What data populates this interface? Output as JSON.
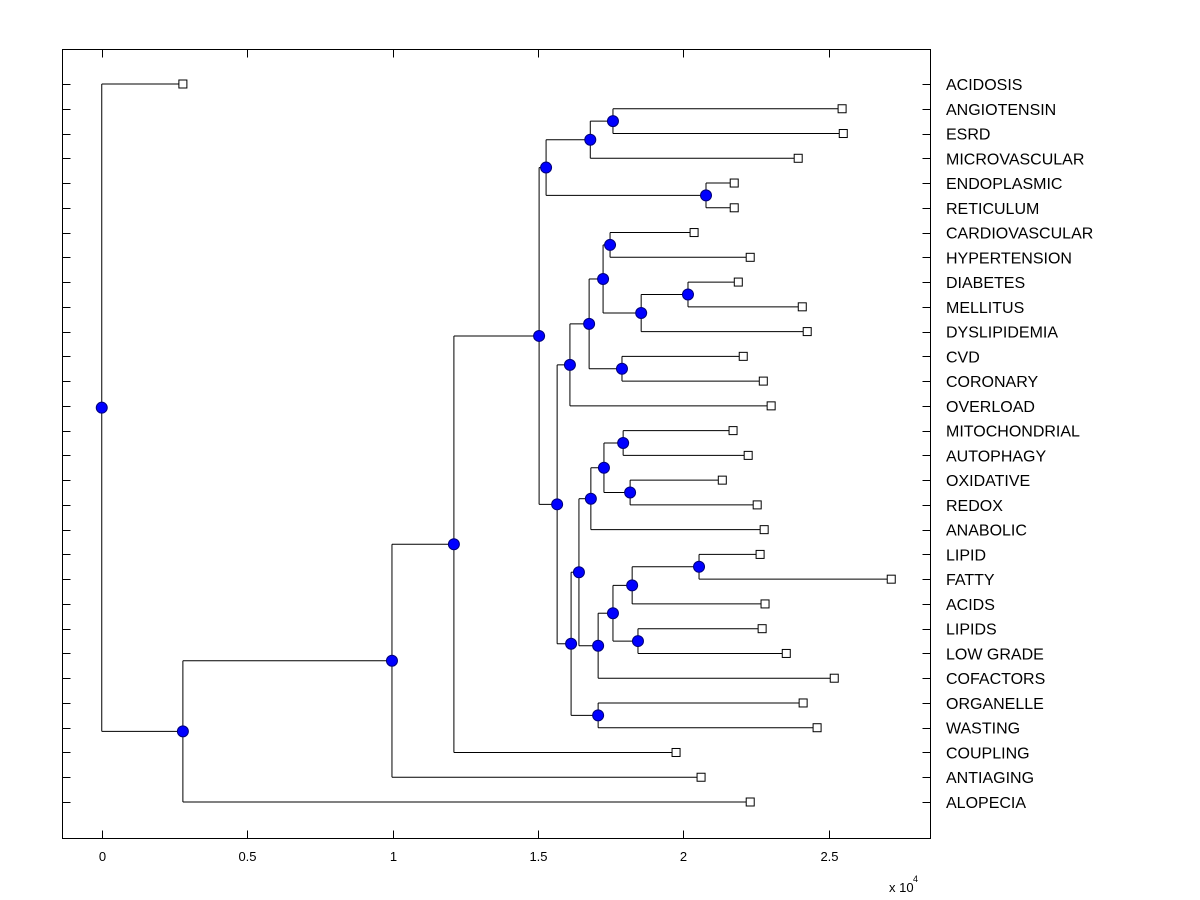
{
  "chart_data": {
    "type": "dendrogram",
    "title": "",
    "xlabel": "",
    "ylabel": "",
    "x_multiplier_label": "x 10",
    "x_multiplier_exponent": "4",
    "xlim": [
      -0.135,
      2.85
    ],
    "x_ticks": [
      0,
      0.5,
      1,
      1.5,
      2,
      2.5
    ],
    "x_tick_labels": [
      "0",
      "0.5",
      "1",
      "1.5",
      "2",
      "2.5"
    ],
    "grid": false,
    "leaf_marker_color": "#ffffff",
    "node_marker_color": "#0000ff",
    "leaves": [
      {
        "label": "ACIDOSIS",
        "x": 0.279
      },
      {
        "label": "ANGIOTENSIN",
        "x": 2.546
      },
      {
        "label": "ESRD",
        "x": 2.55
      },
      {
        "label": "MICROVASCULAR",
        "x": 2.395
      },
      {
        "label": "ENDOPLASMIC",
        "x": 2.175
      },
      {
        "label": "RETICULUM",
        "x": 2.175
      },
      {
        "label": "CARDIOVASCULAR",
        "x": 2.037
      },
      {
        "label": "HYPERTENSION",
        "x": 2.23
      },
      {
        "label": "DIABETES",
        "x": 2.189
      },
      {
        "label": "MELLITUS",
        "x": 2.409
      },
      {
        "label": "DYSLIPIDEMIA",
        "x": 2.426
      },
      {
        "label": "CVD",
        "x": 2.206
      },
      {
        "label": "CORONARY",
        "x": 2.275
      },
      {
        "label": "OVERLOAD",
        "x": 2.302
      },
      {
        "label": "MITOCHONDRIAL",
        "x": 2.171
      },
      {
        "label": "AUTOPHAGY",
        "x": 2.223
      },
      {
        "label": "OXIDATIVE",
        "x": 2.134
      },
      {
        "label": "REDOX",
        "x": 2.254
      },
      {
        "label": "ANABOLIC",
        "x": 2.278
      },
      {
        "label": "LIPID",
        "x": 2.264
      },
      {
        "label": "FATTY",
        "x": 2.715
      },
      {
        "label": "ACIDS",
        "x": 2.281
      },
      {
        "label": "LIPIDS",
        "x": 2.271
      },
      {
        "label": "LOW GRADE",
        "x": 2.354
      },
      {
        "label": "COFACTORS",
        "x": 2.519
      },
      {
        "label": "ORGANELLE",
        "x": 2.412
      },
      {
        "label": "WASTING",
        "x": 2.46
      },
      {
        "label": "COUPLING",
        "x": 1.975
      },
      {
        "label": "ANTIAGING",
        "x": 2.061
      },
      {
        "label": "ALOPECIA",
        "x": 2.23
      }
    ],
    "tree": {
      "id": "root",
      "x": 0.0,
      "children": [
        {
          "leaf": 0
        },
        {
          "id": "n1",
          "x": 0.279,
          "children": [
            {
              "id": "n2",
              "x": 0.998,
              "children": [
                {
                  "id": "n3",
                  "x": 1.211,
                  "children": [
                    {
                      "id": "n4",
                      "x": 1.504,
                      "children": [
                        {
                          "id": "n5",
                          "x": 1.528,
                          "children": [
                            {
                              "id": "n6",
                              "x": 1.68,
                              "children": [
                                {
                                  "id": "n7",
                                  "x": 1.758,
                                  "children": [
                                    {
                                      "leaf": 1
                                    },
                                    {
                                      "leaf": 2
                                    }
                                  ]
                                },
                                {
                                  "leaf": 3
                                }
                              ]
                            },
                            {
                              "id": "n8",
                              "x": 2.078,
                              "children": [
                                {
                                  "leaf": 4
                                },
                                {
                                  "leaf": 5
                                }
                              ]
                            }
                          ]
                        },
                        {
                          "id": "n9",
                          "x": 1.566,
                          "children": [
                            {
                              "id": "n10",
                              "x": 1.61,
                              "children": [
                                {
                                  "id": "n11",
                                  "x": 1.676,
                                  "children": [
                                    {
                                      "id": "n12",
                                      "x": 1.724,
                                      "children": [
                                        {
                                          "id": "n13",
                                          "x": 1.748,
                                          "children": [
                                            {
                                              "leaf": 6
                                            },
                                            {
                                              "leaf": 7
                                            }
                                          ]
                                        },
                                        {
                                          "id": "n14",
                                          "x": 1.855,
                                          "children": [
                                            {
                                              "id": "n15",
                                              "x": 2.016,
                                              "children": [
                                                {
                                                  "leaf": 8
                                                },
                                                {
                                                  "leaf": 9
                                                }
                                              ]
                                            },
                                            {
                                              "leaf": 10
                                            }
                                          ]
                                        }
                                      ]
                                    },
                                    {
                                      "id": "n16",
                                      "x": 1.789,
                                      "children": [
                                        {
                                          "leaf": 11
                                        },
                                        {
                                          "leaf": 12
                                        }
                                      ]
                                    }
                                  ]
                                },
                                {
                                  "leaf": 13
                                }
                              ]
                            },
                            {
                              "id": "n17",
                              "x": 1.614,
                              "children": [
                                {
                                  "id": "n18",
                                  "x": 1.641,
                                  "children": [
                                    {
                                      "id": "n19",
                                      "x": 1.682,
                                      "children": [
                                        {
                                          "id": "n20",
                                          "x": 1.727,
                                          "children": [
                                            {
                                              "id": "n21",
                                              "x": 1.793,
                                              "children": [
                                                {
                                                  "leaf": 14
                                                },
                                                {
                                                  "leaf": 15
                                                }
                                              ]
                                            },
                                            {
                                              "id": "n22",
                                              "x": 1.817,
                                              "children": [
                                                {
                                                  "leaf": 16
                                                },
                                                {
                                                  "leaf": 17
                                                }
                                              ]
                                            }
                                          ]
                                        },
                                        {
                                          "leaf": 18
                                        }
                                      ]
                                    },
                                    {
                                      "id": "n23",
                                      "x": 1.707,
                                      "children": [
                                        {
                                          "id": "n24",
                                          "x": 1.758,
                                          "children": [
                                            {
                                              "id": "n25",
                                              "x": 1.824,
                                              "children": [
                                                {
                                                  "id": "n26",
                                                  "x": 2.054,
                                                  "children": [
                                                    {
                                                      "leaf": 19
                                                    },
                                                    {
                                                      "leaf": 20
                                                    }
                                                  ]
                                                },
                                                {
                                                  "leaf": 21
                                                }
                                              ]
                                            },
                                            {
                                              "id": "n27",
                                              "x": 1.844,
                                              "children": [
                                                {
                                                  "leaf": 22
                                                },
                                                {
                                                  "leaf": 23
                                                }
                                              ]
                                            }
                                          ]
                                        },
                                        {
                                          "leaf": 24
                                        }
                                      ]
                                    }
                                  ]
                                },
                                {
                                  "id": "n28",
                                  "x": 1.707,
                                  "children": [
                                    {
                                      "leaf": 25
                                    },
                                    {
                                      "leaf": 26
                                    }
                                  ]
                                }
                              ]
                            }
                          ]
                        }
                      ]
                    },
                    {
                      "leaf": 27
                    }
                  ]
                },
                {
                  "leaf": 28
                }
              ]
            },
            {
              "leaf": 29
            }
          ]
        }
      ]
    }
  }
}
